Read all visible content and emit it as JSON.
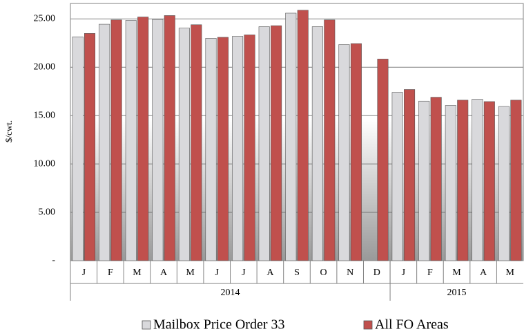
{
  "chart_data": {
    "type": "bar",
    "y_label": "$/cwt.",
    "category_groups": [
      {
        "label": "2014",
        "categories": [
          "J",
          "F",
          "M",
          "A",
          "M",
          "J",
          "J",
          "A",
          "S",
          "O",
          "N",
          "D"
        ]
      },
      {
        "label": "2015",
        "categories": [
          "J",
          "F",
          "M",
          "A",
          "M"
        ]
      }
    ],
    "series": [
      {
        "name": "Mailbox Price Order 33",
        "color": "#d9d9dc",
        "values": [
          23.15,
          24.45,
          24.85,
          24.95,
          24.05,
          23.0,
          23.2,
          24.2,
          25.6,
          24.2,
          22.35,
          null,
          17.4,
          16.5,
          16.05,
          16.7,
          15.95
        ]
      },
      {
        "name": "All FO Areas",
        "color": "#c0504d",
        "values": [
          23.5,
          24.9,
          25.2,
          25.35,
          24.4,
          23.1,
          23.35,
          24.3,
          25.9,
          24.9,
          22.45,
          20.85,
          17.7,
          16.9,
          16.6,
          16.45,
          16.6
        ]
      }
    ],
    "ylim": [
      0,
      26.6
    ],
    "yticks": [
      {
        "value": 0,
        "label": "-"
      },
      {
        "value": 5,
        "label": "5.00"
      },
      {
        "value": 10,
        "label": "10.00"
      },
      {
        "value": 15,
        "label": "15.00"
      },
      {
        "value": 20,
        "label": "20.00"
      },
      {
        "value": 25,
        "label": "25.00"
      }
    ],
    "grid": true
  }
}
